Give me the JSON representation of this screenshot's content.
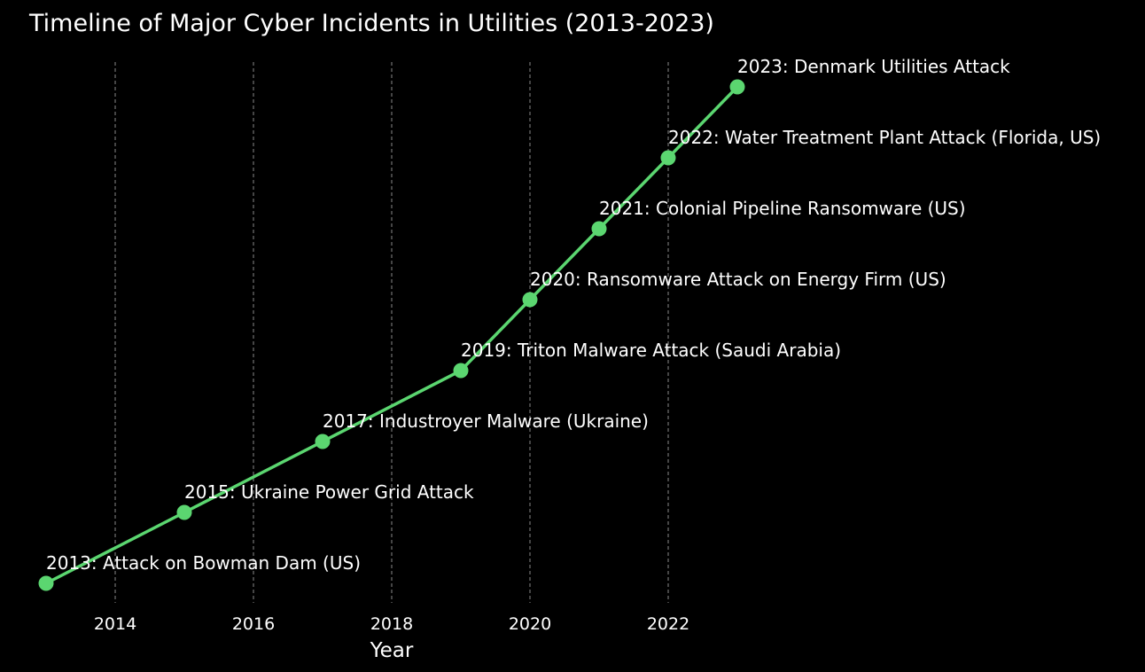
{
  "chart_data": {
    "type": "line",
    "title": "Timeline of Major Cyber Incidents in Utilities (2013-2023)",
    "xlabel": "Year",
    "ylabel": "",
    "xlim": [
      2013,
      2023
    ],
    "xticks": [
      2014,
      2016,
      2018,
      2020,
      2022
    ],
    "grid": "vertical dashed",
    "line_color": "#5bd670",
    "background": "#000000",
    "events": [
      {
        "year": 2013,
        "label": "2013: Attack on Bowman Dam (US)"
      },
      {
        "year": 2015,
        "label": "2015: Ukraine Power Grid Attack"
      },
      {
        "year": 2017,
        "label": "2017: Industroyer Malware (Ukraine)"
      },
      {
        "year": 2019,
        "label": "2019: Triton Malware Attack (Saudi Arabia)"
      },
      {
        "year": 2020,
        "label": "2020: Ransomware Attack on Energy Firm (US)"
      },
      {
        "year": 2021,
        "label": "2021: Colonial Pipeline Ransomware (US)"
      },
      {
        "year": 2022,
        "label": "2022: Water Treatment Plant Attack (Florida, US)"
      },
      {
        "year": 2023,
        "label": "2023: Denmark Utilities Attack"
      }
    ]
  }
}
